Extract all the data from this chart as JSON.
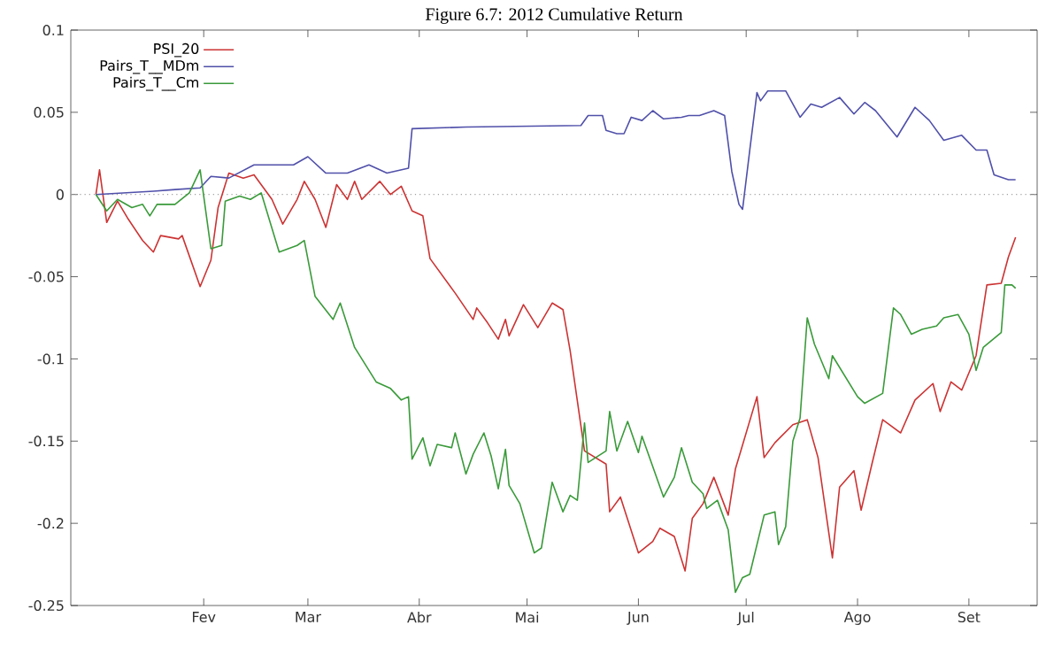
{
  "chart_data": {
    "type": "line",
    "title": "Figure 6.7: 2012 Cumulative Return",
    "xlim": [
      "2011-12-26",
      "2012-09-20"
    ],
    "xticks": [
      {
        "value": "2012-02-01",
        "label": "Fev"
      },
      {
        "value": "2012-03-01",
        "label": "Mar"
      },
      {
        "value": "2012-04-01",
        "label": "Abr"
      },
      {
        "value": "2012-05-01",
        "label": "Mai"
      },
      {
        "value": "2012-06-01",
        "label": "Jun"
      },
      {
        "value": "2012-07-01",
        "label": "Jul"
      },
      {
        "value": "2012-08-01",
        "label": "Ago"
      },
      {
        "value": "2012-09-01",
        "label": "Set"
      }
    ],
    "ylim": [
      -0.25,
      0.1
    ],
    "yticks": [
      -0.25,
      -0.2,
      -0.15,
      -0.1,
      -0.05,
      0,
      0.05,
      0.1
    ],
    "grid": false,
    "legend": "top left",
    "marker": "none",
    "line_style": "solid",
    "ref_lines": [
      {
        "axis": "y",
        "value": 0,
        "color": "#a0a0a0",
        "line_style": "dotted"
      }
    ],
    "series": [
      {
        "name": "PSI_20",
        "color": "#cc3333",
        "x": [
          "2012-01-02",
          "2012-01-03",
          "2012-01-05",
          "2012-01-08",
          "2012-01-11",
          "2012-01-15",
          "2012-01-18",
          "2012-01-20",
          "2012-01-25",
          "2012-01-26",
          "2012-01-31",
          "2012-02-03",
          "2012-02-05",
          "2012-02-08",
          "2012-02-12",
          "2012-02-15",
          "2012-02-20",
          "2012-02-23",
          "2012-02-27",
          "2012-02-29",
          "2012-03-03",
          "2012-03-06",
          "2012-03-09",
          "2012-03-12",
          "2012-03-14",
          "2012-03-16",
          "2012-03-21",
          "2012-03-24",
          "2012-03-27",
          "2012-03-30",
          "2012-04-02",
          "2012-04-04",
          "2012-04-11",
          "2012-04-16",
          "2012-04-17",
          "2012-04-20",
          "2012-04-23",
          "2012-04-25",
          "2012-04-26",
          "2012-04-30",
          "2012-05-04",
          "2012-05-08",
          "2012-05-11",
          "2012-05-13",
          "2012-05-17",
          "2012-05-23",
          "2012-05-24",
          "2012-05-27",
          "2012-06-01",
          "2012-06-05",
          "2012-06-07",
          "2012-06-11",
          "2012-06-14",
          "2012-06-16",
          "2012-06-19",
          "2012-06-22",
          "2012-06-26",
          "2012-06-28",
          "2012-07-04",
          "2012-07-06",
          "2012-07-09",
          "2012-07-14",
          "2012-07-18",
          "2012-07-21",
          "2012-07-25",
          "2012-07-27",
          "2012-07-31",
          "2012-08-02",
          "2012-08-05",
          "2012-08-08",
          "2012-08-13",
          "2012-08-17",
          "2012-08-22",
          "2012-08-24",
          "2012-08-27",
          "2012-08-30",
          "2012-09-03",
          "2012-09-06",
          "2012-09-10",
          "2012-09-12",
          "2012-09-14"
        ],
        "values": [
          0,
          0.015,
          -0.017,
          -0.004,
          -0.015,
          -0.028,
          -0.035,
          -0.025,
          -0.027,
          -0.025,
          -0.056,
          -0.04,
          -0.008,
          0.013,
          0.01,
          0.012,
          -0.003,
          -0.018,
          -0.003,
          0.008,
          -0.003,
          -0.02,
          0.006,
          -0.003,
          0.008,
          -0.003,
          0.008,
          0,
          0.005,
          -0.01,
          -0.013,
          -0.039,
          -0.06,
          -0.076,
          -0.069,
          -0.078,
          -0.088,
          -0.076,
          -0.086,
          -0.067,
          -0.081,
          -0.066,
          -0.07,
          -0.095,
          -0.156,
          -0.164,
          -0.193,
          -0.184,
          -0.218,
          -0.211,
          -0.203,
          -0.208,
          -0.229,
          -0.197,
          -0.188,
          -0.172,
          -0.195,
          -0.167,
          -0.123,
          -0.16,
          -0.151,
          -0.14,
          -0.137,
          -0.16,
          -0.221,
          -0.178,
          -0.168,
          -0.192,
          -0.164,
          -0.137,
          -0.145,
          -0.125,
          -0.115,
          -0.132,
          -0.114,
          -0.119,
          -0.098,
          -0.055,
          -0.054,
          -0.038,
          -0.026
        ]
      },
      {
        "name": "Pairs_T__MDm",
        "color": "#5050aa",
        "x": [
          "2012-01-02",
          "2012-01-10",
          "2012-01-18",
          "2012-01-24",
          "2012-01-31",
          "2012-02-03",
          "2012-02-08",
          "2012-02-15",
          "2012-02-26",
          "2012-03-01",
          "2012-03-06",
          "2012-03-12",
          "2012-03-18",
          "2012-03-23",
          "2012-03-29",
          "2012-03-30",
          "2012-04-14",
          "2012-05-16",
          "2012-05-18",
          "2012-05-22",
          "2012-05-23",
          "2012-05-26",
          "2012-05-28",
          "2012-05-30",
          "2012-06-02",
          "2012-06-05",
          "2012-06-08",
          "2012-06-13",
          "2012-06-15",
          "2012-06-18",
          "2012-06-22",
          "2012-06-25",
          "2012-06-27",
          "2012-06-29",
          "2012-06-30",
          "2012-07-02",
          "2012-07-04",
          "2012-07-05",
          "2012-07-07",
          "2012-07-12",
          "2012-07-16",
          "2012-07-19",
          "2012-07-22",
          "2012-07-27",
          "2012-07-31",
          "2012-08-03",
          "2012-08-06",
          "2012-08-12",
          "2012-08-17",
          "2012-08-21",
          "2012-08-25",
          "2012-08-30",
          "2012-09-03",
          "2012-09-06",
          "2012-09-08",
          "2012-09-12",
          "2012-09-14"
        ],
        "values": [
          0,
          0.001,
          0.002,
          0.003,
          0.004,
          0.011,
          0.01,
          0.018,
          0.018,
          0.023,
          0.013,
          0.013,
          0.018,
          0.013,
          0.016,
          0.04,
          0.041,
          0.042,
          0.048,
          0.048,
          0.039,
          0.037,
          0.037,
          0.047,
          0.045,
          0.051,
          0.046,
          0.047,
          0.048,
          0.048,
          0.051,
          0.048,
          0.014,
          -0.006,
          -0.009,
          0.027,
          0.062,
          0.057,
          0.063,
          0.063,
          0.047,
          0.055,
          0.053,
          0.059,
          0.049,
          0.056,
          0.051,
          0.035,
          0.053,
          0.045,
          0.033,
          0.036,
          0.027,
          0.027,
          0.012,
          0.009,
          0.009
        ]
      },
      {
        "name": "Pairs_T__Cm",
        "color": "#3a9a3a",
        "x": [
          "2012-01-02",
          "2012-01-05",
          "2012-01-08",
          "2012-01-12",
          "2012-01-15",
          "2012-01-17",
          "2012-01-19",
          "2012-01-24",
          "2012-01-28",
          "2012-01-31",
          "2012-02-03",
          "2012-02-06",
          "2012-02-07",
          "2012-02-11",
          "2012-02-14",
          "2012-02-17",
          "2012-02-22",
          "2012-02-27",
          "2012-02-29",
          "2012-03-03",
          "2012-03-08",
          "2012-03-10",
          "2012-03-14",
          "2012-03-20",
          "2012-03-24",
          "2012-03-27",
          "2012-03-29",
          "2012-03-30",
          "2012-04-02",
          "2012-04-04",
          "2012-04-06",
          "2012-04-10",
          "2012-04-11",
          "2012-04-14",
          "2012-04-16",
          "2012-04-19",
          "2012-04-21",
          "2012-04-23",
          "2012-04-25",
          "2012-04-26",
          "2012-04-29",
          "2012-05-03",
          "2012-05-05",
          "2012-05-08",
          "2012-05-11",
          "2012-05-13",
          "2012-05-15",
          "2012-05-17",
          "2012-05-18",
          "2012-05-23",
          "2012-05-24",
          "2012-05-26",
          "2012-05-29",
          "2012-06-01",
          "2012-06-02",
          "2012-06-08",
          "2012-06-11",
          "2012-06-13",
          "2012-06-16",
          "2012-06-19",
          "2012-06-20",
          "2012-06-23",
          "2012-06-26",
          "2012-06-28",
          "2012-06-30",
          "2012-07-02",
          "2012-07-06",
          "2012-07-09",
          "2012-07-10",
          "2012-07-12",
          "2012-07-14",
          "2012-07-16",
          "2012-07-18",
          "2012-07-20",
          "2012-07-24",
          "2012-07-25",
          "2012-08-01",
          "2012-08-03",
          "2012-08-08",
          "2012-08-11",
          "2012-08-13",
          "2012-08-16",
          "2012-08-19",
          "2012-08-23",
          "2012-08-25",
          "2012-08-29",
          "2012-09-01",
          "2012-09-03",
          "2012-09-05",
          "2012-09-10",
          "2012-09-11",
          "2012-09-13",
          "2012-09-14"
        ],
        "values": [
          0,
          -0.01,
          -0.003,
          -0.008,
          -0.006,
          -0.013,
          -0.006,
          -0.006,
          0.001,
          0.015,
          -0.033,
          -0.031,
          -0.004,
          -0.001,
          -0.003,
          0.001,
          -0.035,
          -0.031,
          -0.028,
          -0.062,
          -0.076,
          -0.066,
          -0.093,
          -0.114,
          -0.118,
          -0.125,
          -0.123,
          -0.161,
          -0.148,
          -0.165,
          -0.152,
          -0.154,
          -0.145,
          -0.17,
          -0.158,
          -0.145,
          -0.159,
          -0.179,
          -0.155,
          -0.177,
          -0.188,
          -0.218,
          -0.215,
          -0.175,
          -0.193,
          -0.183,
          -0.186,
          -0.139,
          -0.163,
          -0.156,
          -0.132,
          -0.156,
          -0.138,
          -0.157,
          -0.147,
          -0.184,
          -0.172,
          -0.154,
          -0.175,
          -0.182,
          -0.191,
          -0.186,
          -0.204,
          -0.242,
          -0.233,
          -0.231,
          -0.195,
          -0.193,
          -0.213,
          -0.202,
          -0.15,
          -0.136,
          -0.075,
          -0.091,
          -0.112,
          -0.098,
          -0.123,
          -0.127,
          -0.121,
          -0.069,
          -0.073,
          -0.085,
          -0.082,
          -0.08,
          -0.075,
          -0.073,
          -0.085,
          -0.107,
          -0.093,
          -0.084,
          -0.055,
          -0.055,
          -0.057
        ]
      }
    ]
  }
}
